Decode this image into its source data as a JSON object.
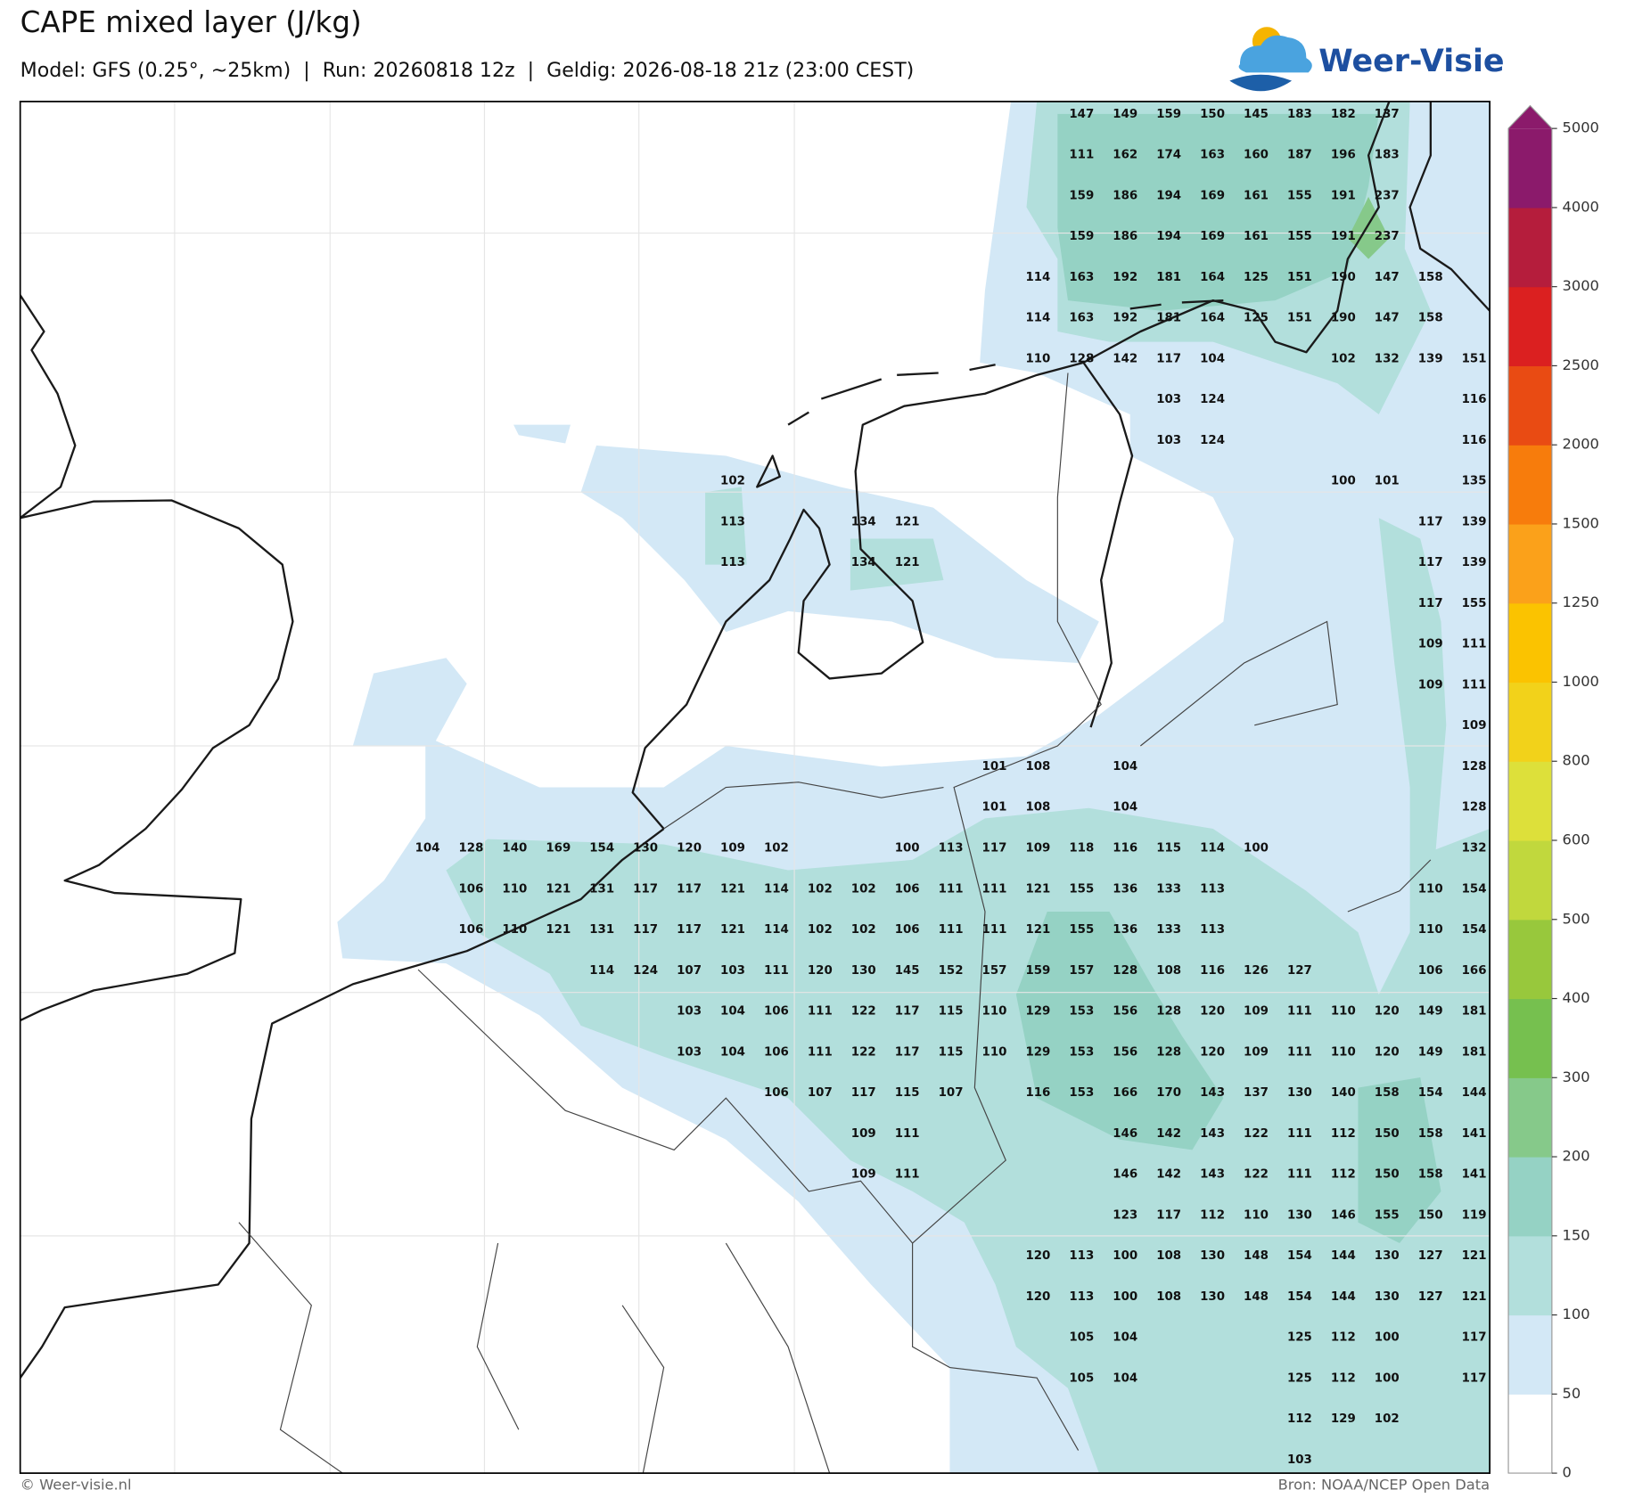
{
  "header": {
    "title": "CAPE mixed layer (J/kg)",
    "subtitle": "Model: GFS (0.25°, ~25km)  |  Run: 20260818 12z  |  Geldig: 2026-08-18 21z (23:00 CEST)",
    "logo": "Weer-Visie"
  },
  "colorbar": {
    "ticks": [
      0,
      50,
      100,
      150,
      200,
      300,
      400,
      500,
      600,
      800,
      1000,
      1250,
      1500,
      2000,
      2500,
      3000,
      4000,
      5000
    ],
    "colors": [
      "#ffffff",
      "#d3e8f6",
      "#b2dfdc",
      "#95d2c4",
      "#86c98a",
      "#76c04f",
      "#98c83c",
      "#c1d83d",
      "#dde03a",
      "#f2d21a",
      "#fbc300",
      "#fba11a",
      "#f77c0c",
      "#e94b13",
      "#db2020",
      "#b51d3c",
      "#8b1a6b"
    ],
    "extend_color": "#8b1a6b"
  },
  "grid_labels": [
    [
      null,
      null,
      null,
      null,
      null,
      null,
      null,
      null,
      null,
      null,
      null,
      null,
      null,
      null,
      null,
      147,
      149,
      159,
      150,
      145,
      183,
      182,
      137,
      null,
      null
    ],
    [
      null,
      null,
      null,
      null,
      null,
      null,
      null,
      null,
      null,
      null,
      null,
      null,
      null,
      null,
      null,
      111,
      162,
      174,
      163,
      160,
      187,
      196,
      183,
      null,
      null
    ],
    [
      null,
      null,
      null,
      null,
      null,
      null,
      null,
      null,
      null,
      null,
      null,
      null,
      null,
      null,
      null,
      159,
      186,
      194,
      169,
      161,
      155,
      191,
      237,
      null,
      null
    ],
    [
      null,
      null,
      null,
      null,
      null,
      null,
      null,
      null,
      null,
      null,
      null,
      null,
      null,
      null,
      null,
      159,
      186,
      194,
      169,
      161,
      155,
      191,
      237,
      null,
      null
    ],
    [
      null,
      null,
      null,
      null,
      null,
      null,
      null,
      null,
      null,
      null,
      null,
      null,
      null,
      null,
      114,
      163,
      192,
      181,
      164,
      125,
      151,
      190,
      147,
      158,
      null
    ],
    [
      null,
      null,
      null,
      null,
      null,
      null,
      null,
      null,
      null,
      null,
      null,
      null,
      null,
      null,
      114,
      163,
      192,
      181,
      164,
      125,
      151,
      190,
      147,
      158,
      null
    ],
    [
      null,
      null,
      null,
      null,
      null,
      null,
      null,
      null,
      null,
      null,
      null,
      null,
      null,
      null,
      110,
      128,
      142,
      117,
      104,
      null,
      null,
      102,
      132,
      139,
      151
    ],
    [
      null,
      null,
      null,
      null,
      null,
      null,
      null,
      null,
      null,
      null,
      null,
      null,
      null,
      null,
      null,
      null,
      null,
      103,
      124,
      null,
      null,
      null,
      null,
      null,
      116
    ],
    [
      null,
      null,
      null,
      null,
      null,
      null,
      null,
      null,
      null,
      null,
      null,
      null,
      null,
      null,
      null,
      null,
      null,
      103,
      124,
      null,
      null,
      null,
      null,
      null,
      116
    ],
    [
      null,
      null,
      null,
      null,
      null,
      null,
      null,
      102,
      null,
      null,
      null,
      null,
      null,
      null,
      null,
      null,
      null,
      null,
      null,
      null,
      null,
      100,
      101,
      null,
      135
    ],
    [
      null,
      null,
      null,
      null,
      null,
      null,
      null,
      113,
      null,
      null,
      134,
      121,
      null,
      null,
      null,
      null,
      null,
      null,
      null,
      null,
      null,
      null,
      null,
      117,
      139
    ],
    [
      null,
      null,
      null,
      null,
      null,
      null,
      null,
      113,
      null,
      null,
      134,
      121,
      null,
      null,
      null,
      null,
      null,
      null,
      null,
      null,
      null,
      null,
      null,
      117,
      139
    ],
    [
      null,
      null,
      null,
      null,
      null,
      null,
      null,
      null,
      null,
      null,
      null,
      null,
      null,
      null,
      null,
      null,
      null,
      null,
      null,
      null,
      null,
      null,
      null,
      117,
      155
    ],
    [
      null,
      null,
      null,
      null,
      null,
      null,
      null,
      null,
      null,
      null,
      null,
      null,
      null,
      null,
      null,
      null,
      null,
      null,
      null,
      null,
      null,
      null,
      null,
      109,
      111
    ],
    [
      null,
      null,
      null,
      null,
      null,
      null,
      null,
      null,
      null,
      null,
      null,
      null,
      null,
      null,
      null,
      null,
      null,
      null,
      null,
      null,
      null,
      null,
      null,
      109,
      111
    ],
    [
      null,
      null,
      null,
      null,
      null,
      null,
      null,
      null,
      null,
      null,
      null,
      null,
      null,
      null,
      null,
      null,
      null,
      null,
      null,
      null,
      null,
      null,
      null,
      null,
      109
    ],
    [
      null,
      null,
      null,
      null,
      null,
      null,
      null,
      null,
      null,
      null,
      null,
      null,
      null,
      101,
      108,
      null,
      104,
      null,
      null,
      null,
      null,
      null,
      null,
      null,
      128
    ],
    [
      null,
      null,
      null,
      null,
      null,
      null,
      null,
      null,
      null,
      null,
      null,
      null,
      null,
      101,
      108,
      null,
      104,
      null,
      null,
      null,
      null,
      null,
      null,
      null,
      128
    ],
    [
      104,
      128,
      140,
      169,
      154,
      130,
      120,
      109,
      102,
      null,
      null,
      100,
      113,
      117,
      109,
      118,
      116,
      115,
      114,
      100,
      null,
      null,
      null,
      null,
      132
    ],
    [
      null,
      106,
      110,
      121,
      131,
      117,
      117,
      121,
      114,
      102,
      102,
      106,
      111,
      111,
      121,
      155,
      136,
      133,
      113,
      null,
      null,
      null,
      null,
      110,
      154
    ],
    [
      null,
      106,
      110,
      121,
      131,
      117,
      117,
      121,
      114,
      102,
      102,
      106,
      111,
      111,
      121,
      155,
      136,
      133,
      113,
      null,
      null,
      null,
      null,
      110,
      154
    ],
    [
      null,
      null,
      null,
      null,
      114,
      124,
      107,
      103,
      111,
      120,
      130,
      145,
      152,
      157,
      159,
      157,
      128,
      108,
      116,
      126,
      127,
      null,
      null,
      106,
      166
    ],
    [
      null,
      null,
      null,
      null,
      null,
      null,
      103,
      104,
      106,
      111,
      122,
      117,
      115,
      110,
      129,
      153,
      156,
      128,
      120,
      109,
      111,
      110,
      120,
      149,
      181
    ],
    [
      null,
      null,
      null,
      null,
      null,
      null,
      103,
      104,
      106,
      111,
      122,
      117,
      115,
      110,
      129,
      153,
      156,
      128,
      120,
      109,
      111,
      110,
      120,
      149,
      181
    ],
    [
      null,
      null,
      null,
      null,
      null,
      null,
      null,
      null,
      106,
      107,
      117,
      115,
      107,
      null,
      116,
      153,
      166,
      170,
      143,
      137,
      130,
      140,
      158,
      154,
      144
    ],
    [
      null,
      null,
      null,
      null,
      null,
      null,
      null,
      null,
      null,
      null,
      109,
      111,
      null,
      null,
      null,
      null,
      146,
      142,
      143,
      122,
      111,
      112,
      150,
      158,
      141
    ],
    [
      null,
      null,
      null,
      null,
      null,
      null,
      null,
      null,
      null,
      null,
      109,
      111,
      null,
      null,
      null,
      null,
      146,
      142,
      143,
      122,
      111,
      112,
      150,
      158,
      141
    ],
    [
      null,
      null,
      null,
      null,
      null,
      null,
      null,
      null,
      null,
      null,
      null,
      null,
      null,
      null,
      null,
      null,
      123,
      117,
      112,
      110,
      130,
      146,
      155,
      150,
      119
    ],
    [
      null,
      null,
      null,
      null,
      null,
      null,
      null,
      null,
      null,
      null,
      null,
      null,
      null,
      null,
      120,
      113,
      100,
      108,
      130,
      148,
      154,
      144,
      130,
      127,
      121
    ],
    [
      null,
      null,
      null,
      null,
      null,
      null,
      null,
      null,
      null,
      null,
      null,
      null,
      null,
      null,
      120,
      113,
      100,
      108,
      130,
      148,
      154,
      144,
      130,
      127,
      121
    ],
    [
      null,
      null,
      null,
      null,
      null,
      null,
      null,
      null,
      null,
      null,
      null,
      null,
      null,
      null,
      null,
      105,
      104,
      null,
      null,
      null,
      125,
      112,
      100,
      null,
      117
    ],
    [
      null,
      null,
      null,
      null,
      null,
      null,
      null,
      null,
      null,
      null,
      null,
      null,
      null,
      null,
      null,
      105,
      104,
      null,
      null,
      null,
      125,
      112,
      100,
      null,
      117
    ],
    [
      null,
      null,
      null,
      null,
      null,
      null,
      null,
      null,
      null,
      null,
      null,
      null,
      null,
      null,
      null,
      null,
      null,
      null,
      null,
      null,
      112,
      129,
      102,
      null,
      null
    ],
    [
      null,
      null,
      null,
      null,
      null,
      null,
      null,
      null,
      null,
      null,
      null,
      null,
      null,
      null,
      null,
      null,
      null,
      null,
      null,
      null,
      103,
      null,
      null,
      null,
      null
    ]
  ],
  "footer": {
    "copyright": "© Weer-visie.nl",
    "source": "Bron: NOAA/NCEP Open Data"
  }
}
